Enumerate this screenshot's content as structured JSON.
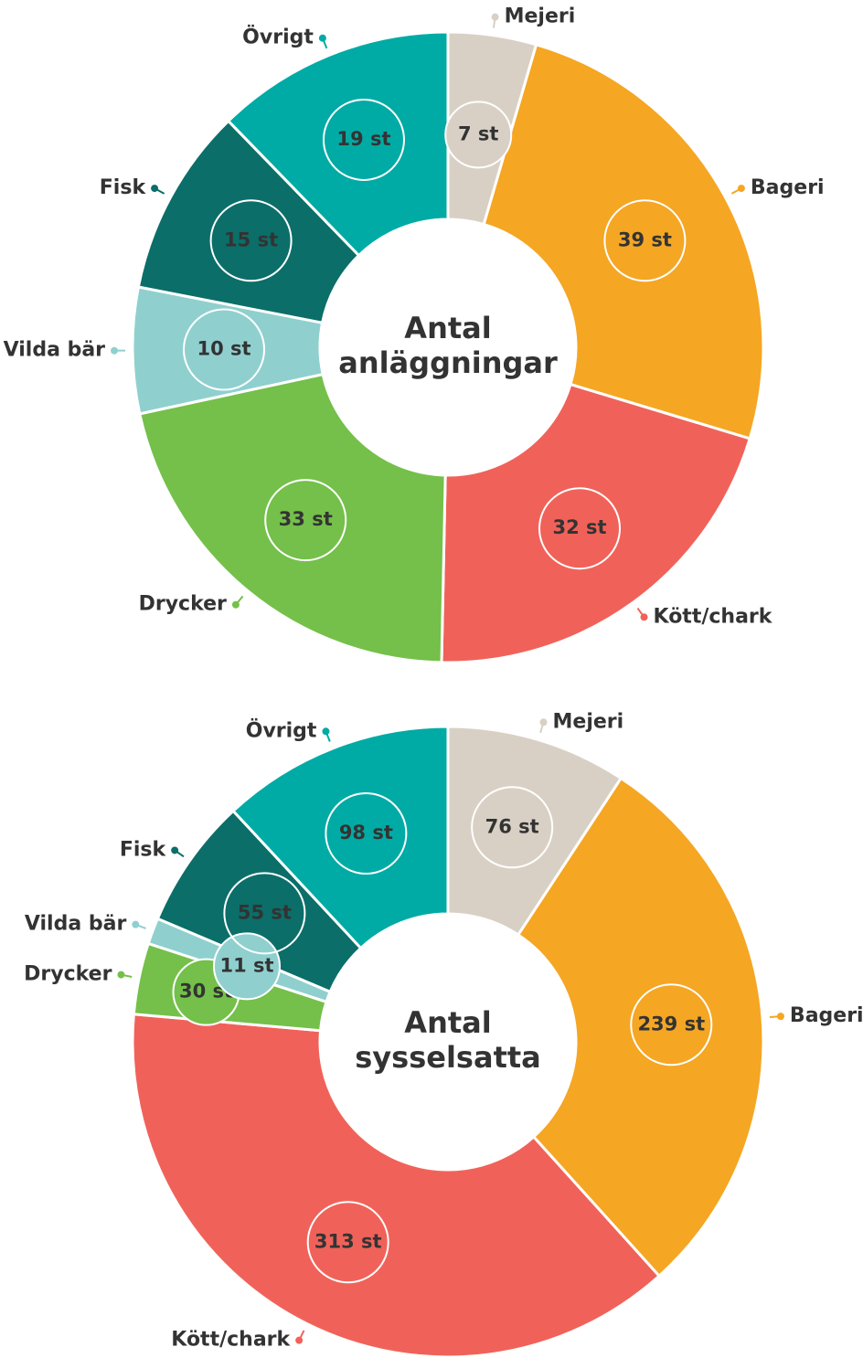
{
  "chart_data": [
    {
      "type": "pie",
      "title": "Antal anläggningar",
      "categories": [
        "Mejeri",
        "Bageri",
        "Kött/chark",
        "Drycker",
        "Vilda bär",
        "Fisk",
        "Övrigt"
      ],
      "values": [
        7,
        39,
        32,
        33,
        10,
        15,
        19
      ],
      "value_labels": [
        "7 st",
        "39 st",
        "32 st",
        "33 st",
        "10 st",
        "15 st",
        "19 st"
      ],
      "colors": [
        "#d9d0c5",
        "#f5a623",
        "#f06259",
        "#74c04a",
        "#8fd0cf",
        "#0b6e69",
        "#00aba5"
      ]
    },
    {
      "type": "pie",
      "title": "Antal sysselsatta",
      "categories": [
        "Mejeri",
        "Bageri",
        "Kött/chark",
        "Drycker",
        "Vilda bär",
        "Fisk",
        "Övrigt"
      ],
      "values": [
        76,
        239,
        313,
        30,
        11,
        55,
        98
      ],
      "value_labels": [
        "76 st",
        "239 st",
        "313 st",
        "30 st",
        "11 st",
        "55 st",
        "98 st"
      ],
      "colors": [
        "#d9d0c5",
        "#f5a623",
        "#f06259",
        "#74c04a",
        "#8fd0cf",
        "#0b6e69",
        "#00aba5"
      ]
    }
  ]
}
